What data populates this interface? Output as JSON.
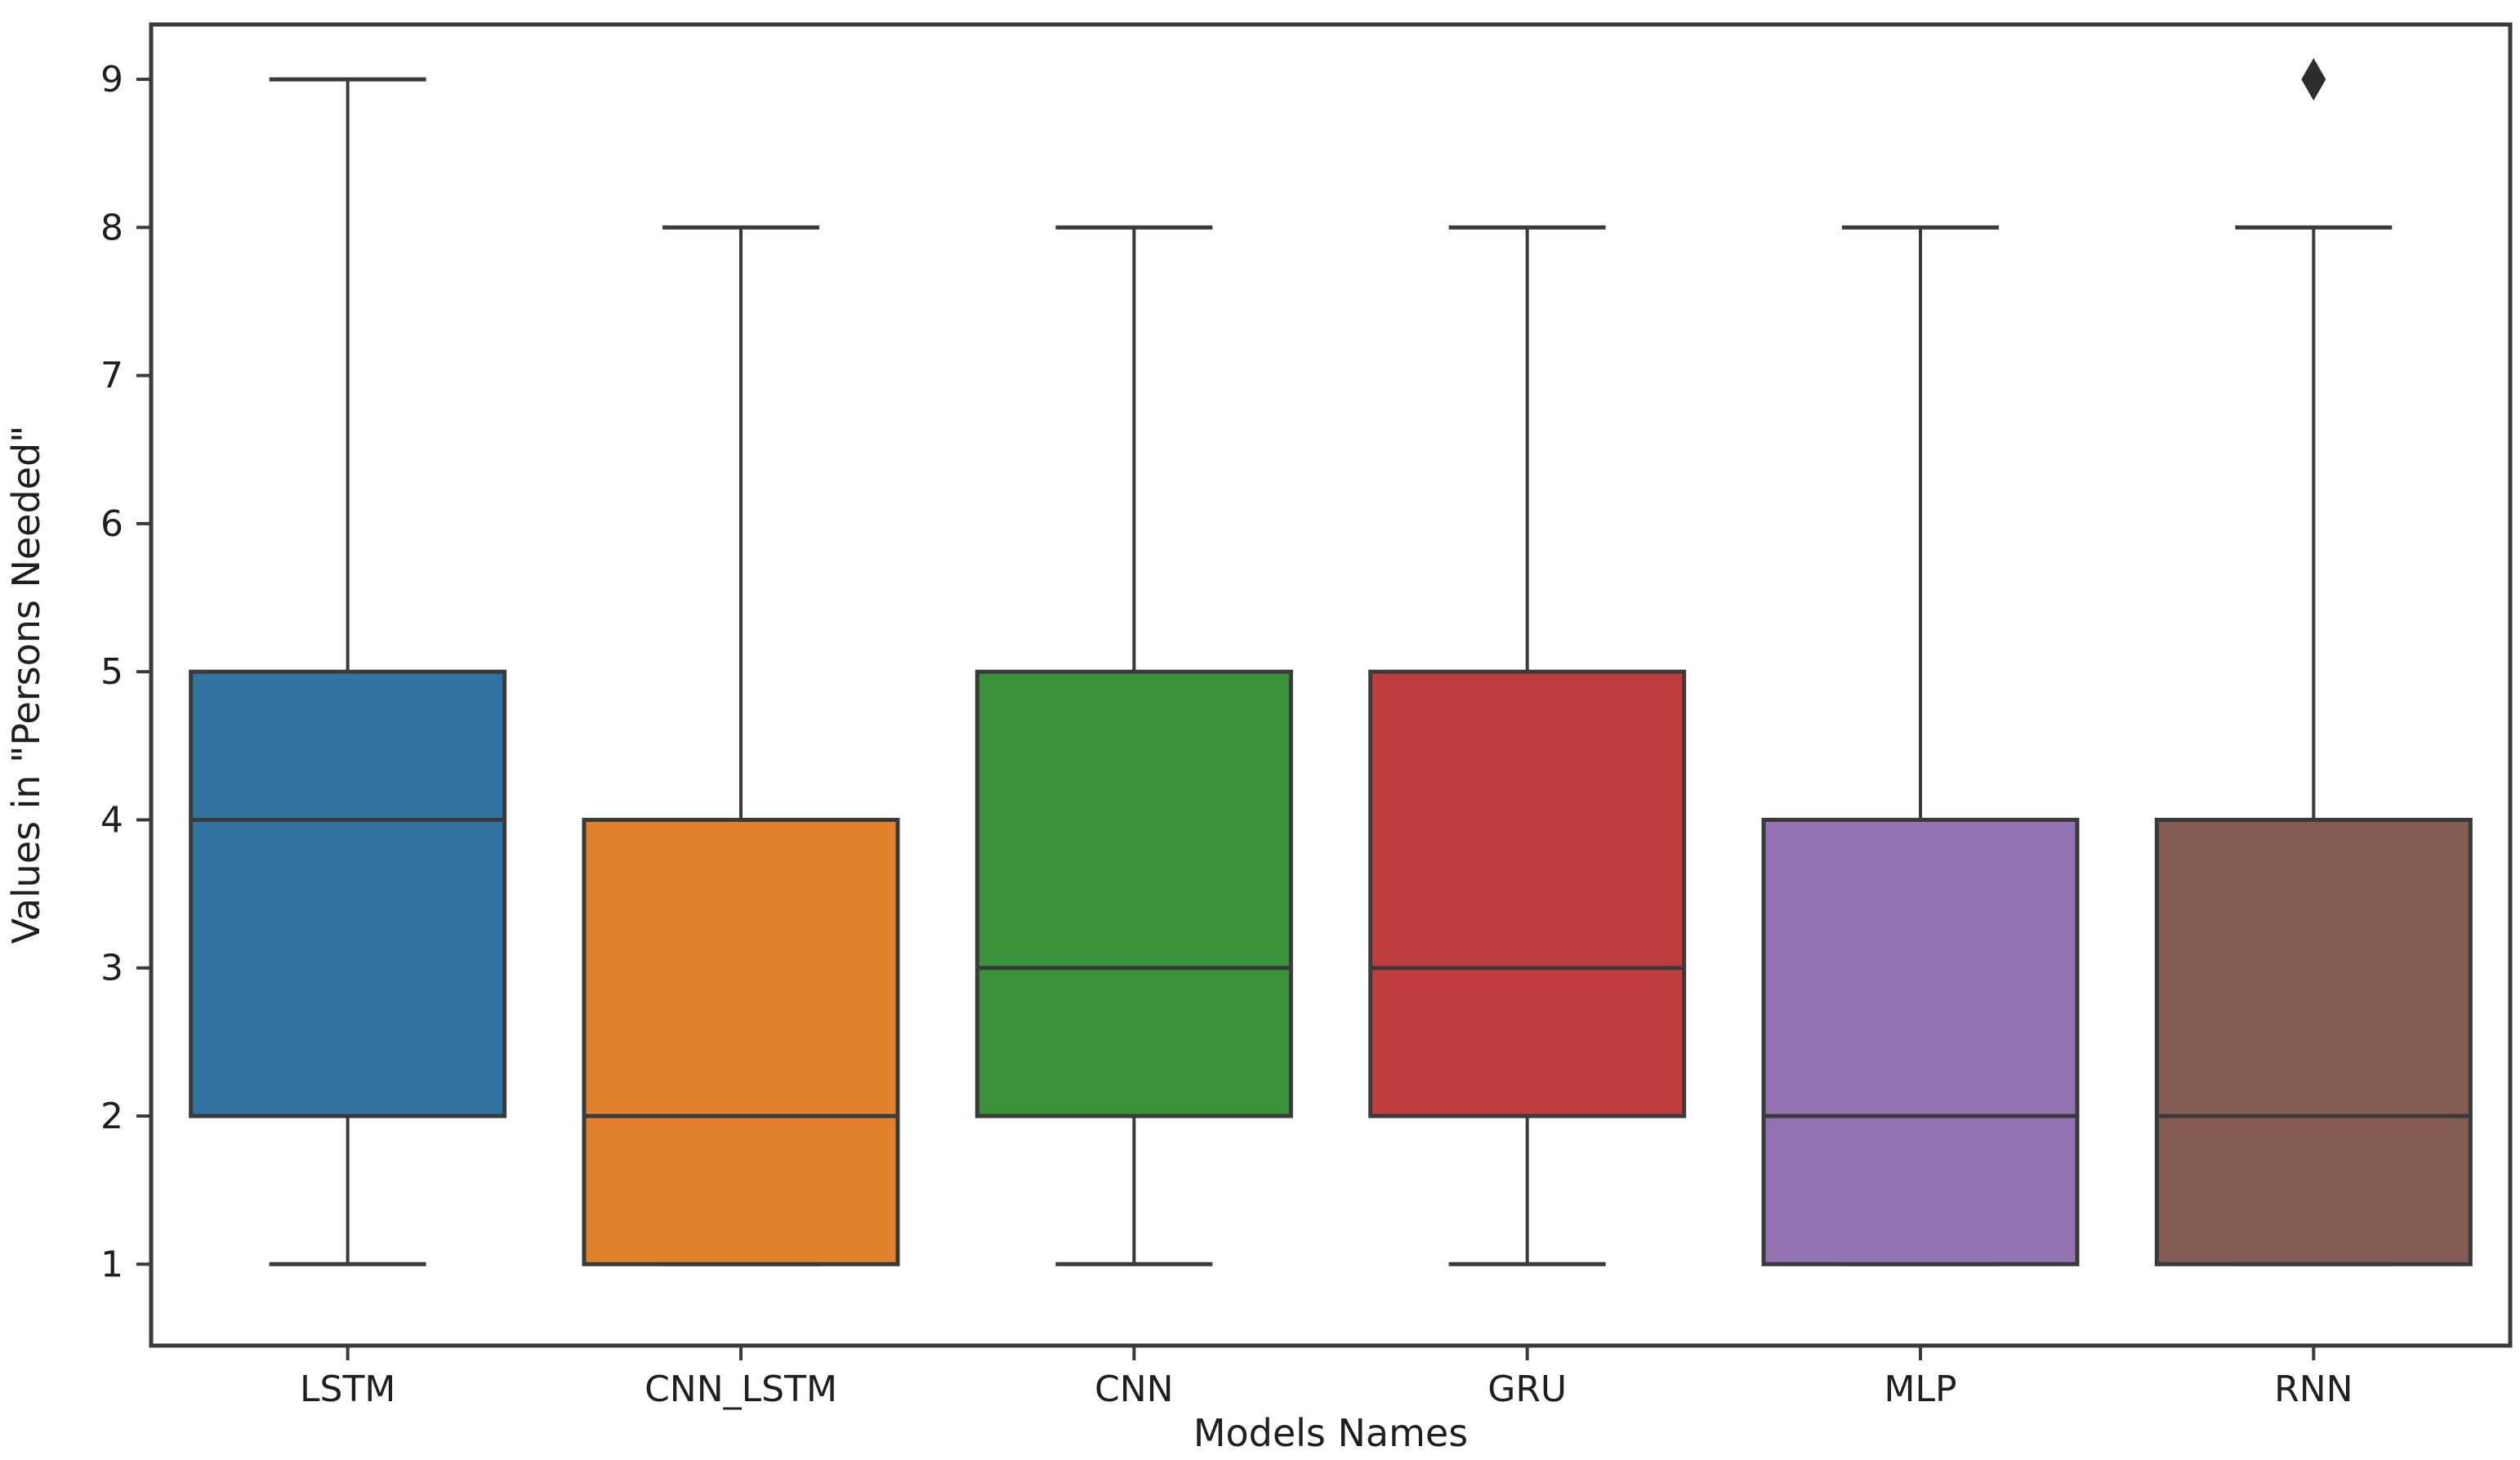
{
  "chart_data": {
    "type": "boxplot",
    "title": "",
    "xlabel": "Models Names",
    "ylabel": "Values in \"Persons Needed\"",
    "categories": [
      "LSTM",
      "CNN_LSTM",
      "CNN",
      "GRU",
      "MLP",
      "RNN"
    ],
    "yticks": [
      1,
      2,
      3,
      4,
      5,
      6,
      7,
      8,
      9
    ],
    "ylim": [
      0.45,
      9.37
    ],
    "grid": false,
    "legend": null,
    "background_color": "#ffffff",
    "box_edge_color": "#3a3a3a",
    "text_color": "#1f1f1f",
    "series": [
      {
        "name": "LSTM",
        "color": "#3274a1",
        "whisker_low": 1,
        "q1": 2,
        "median": 4,
        "q3": 5,
        "whisker_high": 9,
        "outliers": []
      },
      {
        "name": "CNN_LSTM",
        "color": "#e1812c",
        "whisker_low": 1,
        "q1": 1,
        "median": 2,
        "q3": 4,
        "whisker_high": 8,
        "outliers": []
      },
      {
        "name": "CNN",
        "color": "#3a923a",
        "whisker_low": 1,
        "q1": 2,
        "median": 3,
        "q3": 5,
        "whisker_high": 8,
        "outliers": []
      },
      {
        "name": "GRU",
        "color": "#c03d3e",
        "whisker_low": 1,
        "q1": 2,
        "median": 3,
        "q3": 5,
        "whisker_high": 8,
        "outliers": []
      },
      {
        "name": "MLP",
        "color": "#9372b2",
        "whisker_low": 1,
        "q1": 1,
        "median": 2,
        "q3": 4,
        "whisker_high": 8,
        "outliers": []
      },
      {
        "name": "RNN",
        "color": "#845b53",
        "whisker_low": 1,
        "q1": 1,
        "median": 2,
        "q3": 4,
        "whisker_high": 8,
        "outliers": [
          9
        ]
      }
    ]
  }
}
